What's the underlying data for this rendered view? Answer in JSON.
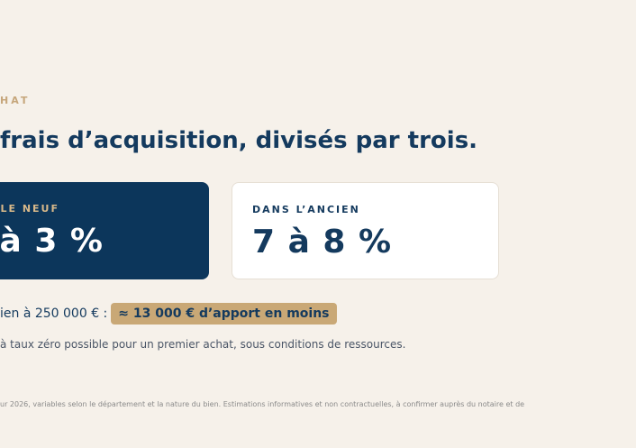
{
  "section": {
    "eyebrow": "HAT",
    "headline": "frais d’acquisition, divisés par trois."
  },
  "cards": {
    "new": {
      "label": "LE NEUF",
      "value": "à 3 %"
    },
    "old": {
      "label": "DANS L’ANCIEN",
      "value": "7 à 8 %"
    }
  },
  "saving": {
    "text": "ien à 250 000 € :",
    "badge": "≈ 13 000 € d’apport en moins"
  },
  "note": "à taux zéro possible pour un premier achat, sous conditions de ressources.",
  "footnote": "ur 2026, variables selon le département et la nature du bien. Estimations informatives et non contractuelles, à confirmer auprès du notaire et de",
  "colors": {
    "background": "#f6f1ea",
    "navy": "#0c365b",
    "gold": "#c9a876"
  }
}
